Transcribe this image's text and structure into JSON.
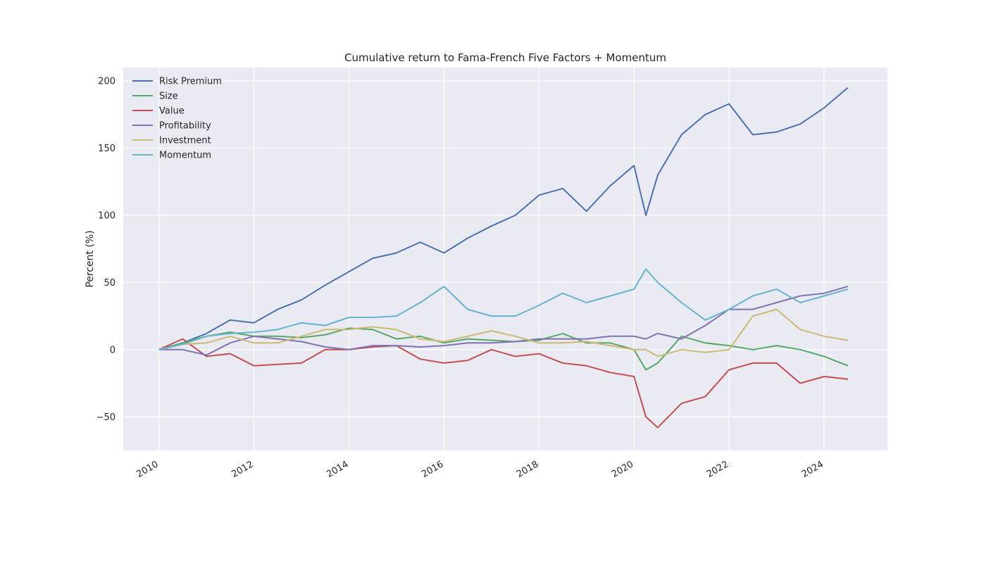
{
  "chart_data": {
    "type": "line",
    "title": "Cumulative return to Fama-French Five Factors + Momentum",
    "xlabel": "",
    "ylabel": "Percent (%)",
    "x_ticks": [
      "2010",
      "2012",
      "2014",
      "2016",
      "2018",
      "2020",
      "2022",
      "2024"
    ],
    "y_ticks": [
      "−50",
      "0",
      "50",
      "100",
      "150",
      "200"
    ],
    "y_tick_values": [
      -50,
      0,
      50,
      100,
      150,
      200
    ],
    "xlim": [
      "2009-04",
      "2025-05"
    ],
    "ylim": [
      -75,
      210
    ],
    "grid": true,
    "legend_position": "top-left",
    "x": [
      "2010-01",
      "2010-07",
      "2011-01",
      "2011-07",
      "2012-01",
      "2012-07",
      "2013-01",
      "2013-07",
      "2014-01",
      "2014-07",
      "2015-01",
      "2015-07",
      "2016-01",
      "2016-07",
      "2017-01",
      "2017-07",
      "2018-01",
      "2018-07",
      "2019-01",
      "2019-07",
      "2020-01",
      "2020-04",
      "2020-07",
      "2021-01",
      "2021-07",
      "2022-01",
      "2022-07",
      "2023-01",
      "2023-07",
      "2024-01",
      "2024-07"
    ],
    "series": [
      {
        "name": "Risk Premium",
        "color": "#4c72b0",
        "values": [
          0,
          5,
          12,
          22,
          20,
          30,
          37,
          48,
          58,
          68,
          72,
          80,
          72,
          83,
          92,
          100,
          115,
          120,
          103,
          122,
          137,
          100,
          130,
          160,
          175,
          183,
          160,
          162,
          168,
          180,
          195
        ]
      },
      {
        "name": "Size",
        "color": "#55a868",
        "values": [
          0,
          5,
          10,
          13,
          10,
          10,
          9,
          11,
          16,
          15,
          8,
          10,
          5,
          8,
          7,
          6,
          7,
          12,
          5,
          5,
          0,
          -15,
          -10,
          10,
          5,
          3,
          0,
          3,
          0,
          -5,
          -12
        ]
      },
      {
        "name": "Value",
        "color": "#c44e52",
        "values": [
          0,
          8,
          -5,
          -3,
          -12,
          -11,
          -10,
          0,
          0,
          2,
          3,
          -7,
          -10,
          -8,
          0,
          -5,
          -3,
          -10,
          -12,
          -17,
          -20,
          -50,
          -58,
          -40,
          -35,
          -15,
          -10,
          -10,
          -25,
          -20,
          -22
        ]
      },
      {
        "name": "Profitability",
        "color": "#8172b2",
        "values": [
          0,
          0,
          -4,
          5,
          10,
          8,
          6,
          2,
          0,
          3,
          3,
          2,
          3,
          5,
          5,
          6,
          8,
          8,
          8,
          10,
          10,
          8,
          12,
          8,
          18,
          30,
          30,
          35,
          40,
          42,
          47
        ]
      },
      {
        "name": "Investment",
        "color": "#ccb974",
        "values": [
          0,
          4,
          5,
          10,
          5,
          5,
          10,
          15,
          15,
          17,
          15,
          8,
          6,
          10,
          14,
          10,
          5,
          5,
          6,
          3,
          0,
          0,
          -5,
          0,
          -2,
          0,
          25,
          30,
          15,
          10,
          7
        ]
      },
      {
        "name": "Momentum",
        "color": "#64b5cd",
        "values": [
          0,
          4,
          10,
          12,
          13,
          15,
          20,
          18,
          24,
          24,
          25,
          35,
          47,
          30,
          25,
          25,
          33,
          42,
          35,
          40,
          45,
          60,
          50,
          35,
          22,
          30,
          40,
          45,
          35,
          40,
          45
        ]
      }
    ]
  }
}
